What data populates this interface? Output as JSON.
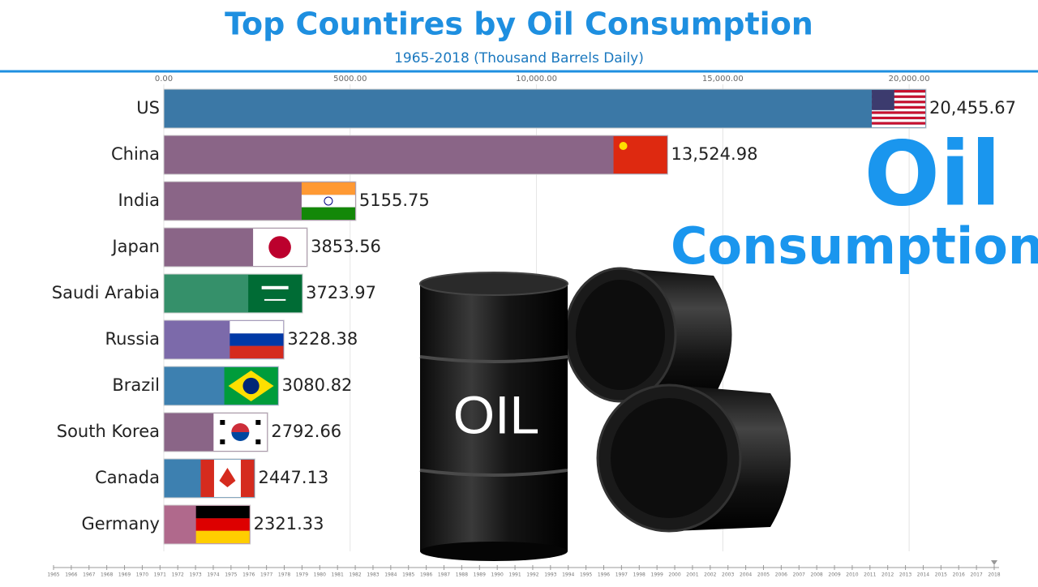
{
  "chart_data": {
    "type": "bar",
    "orientation": "horizontal",
    "title": "Top Countires by Oil Consumption",
    "subtitle": "1965-2018 (Thousand Barrels Daily)",
    "categories": [
      "US",
      "China",
      "India",
      "Japan",
      "Saudi Arabia",
      "Russia",
      "Brazil",
      "South Korea",
      "Canada",
      "Germany"
    ],
    "values": [
      20455.67,
      13524.98,
      5155.75,
      3853.56,
      3723.97,
      3228.38,
      3080.82,
      2792.66,
      2447.13,
      2321.33
    ],
    "value_labels": [
      "20,455.67",
      "13,524.98",
      "5155.75",
      "3853.56",
      "3723.97",
      "3228.38",
      "3080.82",
      "2792.66",
      "2447.13",
      "2321.33"
    ],
    "colors": [
      "#3b78a6",
      "#8a6587",
      "#8a6587",
      "#8a6587",
      "#35906a",
      "#7c6aaa",
      "#3d80b0",
      "#8a6587",
      "#3d80b0",
      "#b0698c"
    ],
    "xlim": [
      0,
      22500
    ],
    "xticks": [
      {
        "value": 0,
        "label": "0.00"
      },
      {
        "value": 5000,
        "label": "5000.00"
      },
      {
        "value": 10000,
        "label": "10,000.00"
      },
      {
        "value": 15000,
        "label": "15,000.00"
      },
      {
        "value": 20000,
        "label": "20,000.00"
      }
    ],
    "grid": true,
    "annotations": [
      "Oil",
      "Consumption",
      "OIL"
    ],
    "timeline": {
      "years": [
        1965,
        1966,
        1967,
        1968,
        1969,
        1970,
        1971,
        1972,
        1973,
        1974,
        1975,
        1976,
        1977,
        1978,
        1979,
        1980,
        1981,
        1982,
        1983,
        1984,
        1985,
        1986,
        1987,
        1988,
        1989,
        1990,
        1991,
        1992,
        1993,
        1994,
        1995,
        1996,
        1997,
        1998,
        1999,
        2000,
        2001,
        2002,
        2003,
        2004,
        2005,
        2006,
        2007,
        2008,
        2009,
        2010,
        2011,
        2012,
        2013,
        2014,
        2015,
        2016,
        2017,
        2018
      ],
      "current": 2018
    }
  }
}
